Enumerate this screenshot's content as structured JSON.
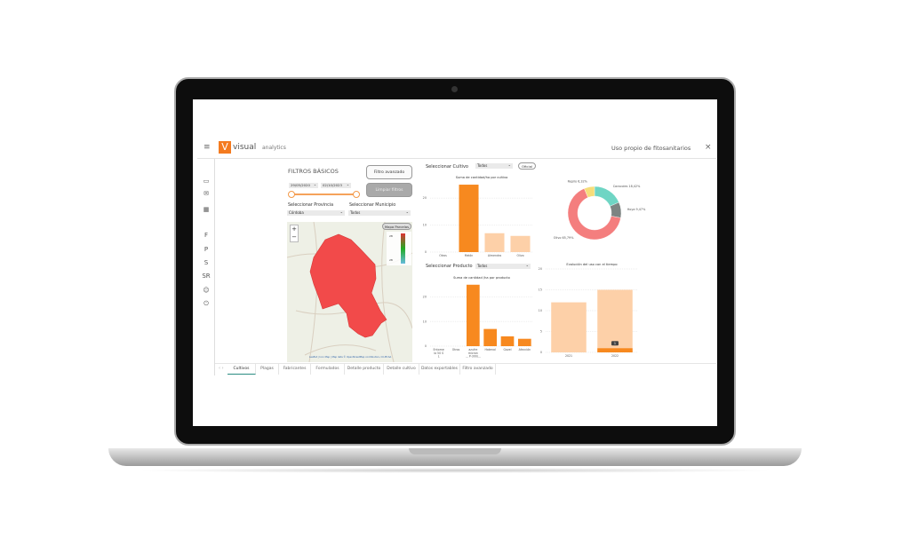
{
  "app": {
    "logo_letter": "V",
    "logo_bold": "visual",
    "logo_light": "analytics",
    "title": "Uso propio de fitosanitarios",
    "close": "×",
    "menu": "≡"
  },
  "sidebar": {
    "letters": [
      "F",
      "P",
      "S",
      "SR"
    ]
  },
  "filters": {
    "title": "FILTROS BÁSICOS",
    "date_from": "29/05/2020",
    "date_to": "02/10/2023",
    "advanced": "Filtro avanzado",
    "clear": "Limpiar filtros",
    "provincia_label": "Seleccionar Provincia",
    "provincia_value": "Córdoba",
    "municipio_label": "Seleccionar Municipio",
    "municipio_value": "Todos",
    "map_button": "Mapa Parcelas",
    "legend_top": "28",
    "legend_bottom": "28",
    "attribution": "Leaflet | Icon Map | Map data © OpenStreetMap contributors, CC-BY-SA",
    "zoom_in": "+",
    "zoom_out": "−"
  },
  "cultivo": {
    "label": "Seleccionar Cultivo",
    "value": "Todos",
    "oficial": "Oficial"
  },
  "producto": {
    "label": "Seleccionar Producto",
    "value": "Todos"
  },
  "tabs": [
    "Cultivos",
    "Plagas",
    "Fabricantes",
    "Formulados",
    "Detalle producto",
    "Detalle cultivo",
    "Datos exportables",
    "Filtro avanzado"
  ],
  "active_tab": 0,
  "chart_data": [
    {
      "type": "bar",
      "title": "Suma de cantidad/ha por cultivo",
      "categories": [
        "Otros",
        "Melón",
        "Almendro",
        "Olivo"
      ],
      "values": [
        0,
        25,
        7,
        6
      ],
      "highlighted": "Melón",
      "yticks": [
        0,
        10,
        20
      ],
      "ylim": [
        0,
        26
      ],
      "colors": {
        "highlight": "#f7891f",
        "other": "#fdd0a8"
      }
    },
    {
      "type": "bar",
      "title": "Suma de cantidad /ha por producto",
      "categories": [
        "Entomela 50 SL",
        "Otros",
        "azufre micron... P-300/...",
        "Hatenal",
        "Gazel",
        "Afección"
      ],
      "values": [
        0,
        0,
        25,
        7,
        4,
        3
      ],
      "yticks": [
        0,
        10,
        20
      ],
      "ylim": [
        0,
        26
      ],
      "colors": {
        "bar": "#f7891f"
      }
    },
    {
      "type": "pie",
      "donut": true,
      "slices": [
        {
          "label": "Caracoles",
          "value": 18.42,
          "color": "#6fd5c4"
        },
        {
          "label": "Hoya",
          "value": 9.47,
          "color": "#7d8482"
        },
        {
          "label": "Olivo",
          "value": 65.79,
          "color": "#f47e7e"
        },
        {
          "label": "Repilo",
          "value": 6.32,
          "color": "#f6dd7a"
        }
      ]
    },
    {
      "type": "bar",
      "title": "Evolución del uso con el tiempo",
      "categories": [
        "2021",
        "2022"
      ],
      "values": [
        12,
        15
      ],
      "overlay": [
        0,
        1
      ],
      "overlay_label": "1",
      "yticks": [
        0,
        5,
        10,
        15,
        20
      ],
      "ylim": [
        0,
        20
      ],
      "colors": {
        "bar": "#fdd0a8",
        "overlay": "#f7891f"
      }
    }
  ]
}
